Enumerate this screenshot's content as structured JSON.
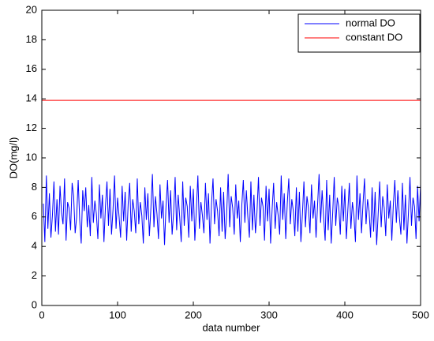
{
  "chart_data": {
    "type": "line",
    "xlabel": "data number",
    "ylabel": "DO(mg/l)",
    "xlim": [
      0,
      500
    ],
    "xticks": [
      0,
      100,
      200,
      300,
      400,
      500
    ],
    "ylim": [
      0,
      20
    ],
    "yticks": [
      0,
      2,
      4,
      6,
      8,
      10,
      12,
      14,
      16,
      18,
      20
    ],
    "grid": false,
    "legend": "northeast",
    "series": [
      {
        "name": "normal DO",
        "color": "#0000ff",
        "x": [
          2,
          4,
          6,
          8,
          10,
          12,
          14,
          16,
          18,
          20,
          22,
          24,
          26,
          28,
          30,
          32,
          34,
          36,
          38,
          40,
          42,
          44,
          46,
          48,
          50,
          52,
          54,
          56,
          58,
          60,
          62,
          64,
          66,
          68,
          70,
          72,
          74,
          76,
          78,
          80,
          82,
          84,
          86,
          88,
          90,
          92,
          94,
          96,
          98,
          100,
          102,
          104,
          106,
          108,
          110,
          112,
          114,
          116,
          118,
          120,
          122,
          124,
          126,
          128,
          130,
          132,
          134,
          136,
          138,
          140,
          142,
          144,
          146,
          148,
          150,
          152,
          154,
          156,
          158,
          160,
          162,
          164,
          166,
          168,
          170,
          172,
          174,
          176,
          178,
          180,
          182,
          184,
          186,
          188,
          190,
          192,
          194,
          196,
          198,
          200,
          202,
          204,
          206,
          208,
          210,
          212,
          214,
          216,
          218,
          220,
          222,
          224,
          226,
          228,
          230,
          232,
          234,
          236,
          238,
          240,
          242,
          244,
          246,
          248,
          250,
          252,
          254,
          256,
          258,
          260,
          262,
          264,
          266,
          268,
          270,
          272,
          274,
          276,
          278,
          280,
          282,
          284,
          286,
          288,
          290,
          292,
          294,
          296,
          298,
          300,
          302,
          304,
          306,
          308,
          310,
          312,
          314,
          316,
          318,
          320,
          322,
          324,
          326,
          328,
          330,
          332,
          334,
          336,
          338,
          340,
          342,
          344,
          346,
          348,
          350,
          352,
          354,
          356,
          358,
          360,
          362,
          364,
          366,
          368,
          370,
          372,
          374,
          376,
          378,
          380,
          382,
          384,
          386,
          388,
          390,
          392,
          394,
          396,
          398,
          400,
          402,
          404,
          406,
          408,
          410,
          412,
          414,
          416,
          418,
          420,
          422,
          424,
          426,
          428,
          430,
          432,
          434,
          436,
          438,
          440,
          442,
          444,
          446,
          448,
          450,
          452,
          454,
          456,
          458,
          460,
          462,
          464,
          466,
          468,
          470,
          472,
          474,
          476,
          478,
          480,
          482,
          484,
          486,
          488,
          490,
          492,
          494,
          496,
          498,
          500
        ],
        "values": [
          6.9,
          4.3,
          8.8,
          5.2,
          7.6,
          4.6,
          6.1,
          8.4,
          5.0,
          7.2,
          4.8,
          8.1,
          6.3,
          5.5,
          8.6,
          4.4,
          7.0,
          6.6,
          5.1,
          8.3,
          7.4,
          4.9,
          6.0,
          8.5,
          5.8,
          4.2,
          7.8,
          6.4,
          8.0,
          5.3,
          6.8,
          4.7,
          8.7,
          5.6,
          7.1,
          6.2,
          4.5,
          8.2,
          5.9,
          7.5,
          4.3,
          6.7,
          8.4,
          5.4,
          7.9,
          4.8,
          6.5,
          8.8,
          5.2,
          7.3,
          6.0,
          4.6,
          8.1,
          5.7,
          7.7,
          4.4,
          6.9,
          8.3,
          5.0,
          7.2,
          6.4,
          4.9,
          8.6,
          5.5,
          7.0,
          6.1,
          4.2,
          8.0,
          5.8,
          7.6,
          4.7,
          6.6,
          8.9,
          5.3,
          7.4,
          6.2,
          4.5,
          8.2,
          5.9,
          7.1,
          4.1,
          6.8,
          8.5,
          5.6,
          7.8,
          4.8,
          6.3,
          8.7,
          5.1,
          7.5,
          6.0,
          4.3,
          8.4,
          5.4,
          7.3,
          6.7,
          4.6,
          8.1,
          5.7,
          7.9,
          4.4,
          6.5,
          8.8,
          5.2,
          7.0,
          6.1,
          4.9,
          8.3,
          5.8,
          7.6,
          4.2,
          6.9,
          8.6,
          5.5,
          7.2,
          6.4,
          4.7,
          8.0,
          5.0,
          7.7,
          4.5,
          6.2,
          8.9,
          5.3,
          7.4,
          6.6,
          4.8,
          8.2,
          5.9,
          7.1,
          4.3,
          6.8,
          8.5,
          5.6,
          7.8,
          6.0,
          4.6,
          8.4,
          5.1,
          7.5,
          4.9,
          6.3,
          8.7,
          5.4,
          7.3,
          6.7,
          4.4,
          8.1,
          5.7,
          7.9,
          4.2,
          6.5,
          8.3,
          5.2,
          7.0,
          6.1,
          4.8,
          8.8,
          5.8,
          7.6,
          4.5,
          6.9,
          8.6,
          5.5,
          7.2,
          6.4,
          4.7,
          8.0,
          5.0,
          7.7,
          4.3,
          6.2,
          8.4,
          5.3,
          7.4,
          6.6,
          4.9,
          8.2,
          5.9,
          7.1,
          4.6,
          6.8,
          8.9,
          5.6,
          7.8,
          6.0,
          4.4,
          8.5,
          5.1,
          7.5,
          4.2,
          6.3,
          8.7,
          5.4,
          7.3,
          6.7,
          4.8,
          8.1,
          5.7,
          7.9,
          4.5,
          6.5,
          8.3,
          5.2,
          7.0,
          6.1,
          4.3,
          8.8,
          5.8,
          7.6,
          4.9,
          6.9,
          8.6,
          5.5,
          7.2,
          6.4,
          4.6,
          8.0,
          5.0,
          7.7,
          4.1,
          6.2,
          8.4,
          5.3,
          7.4,
          6.6,
          4.7,
          8.2,
          5.9,
          7.1,
          4.4,
          6.8,
          8.5,
          5.6,
          7.8,
          6.0,
          4.8,
          8.3,
          5.1,
          7.5,
          4.2,
          6.3,
          8.7,
          5.4,
          7.3,
          6.7,
          4.5,
          8.1,
          5.7,
          8.2
        ]
      },
      {
        "name": "constant DO",
        "color": "#ff0000",
        "x": [
          0,
          500
        ],
        "values": [
          13.9,
          13.9
        ]
      }
    ]
  }
}
